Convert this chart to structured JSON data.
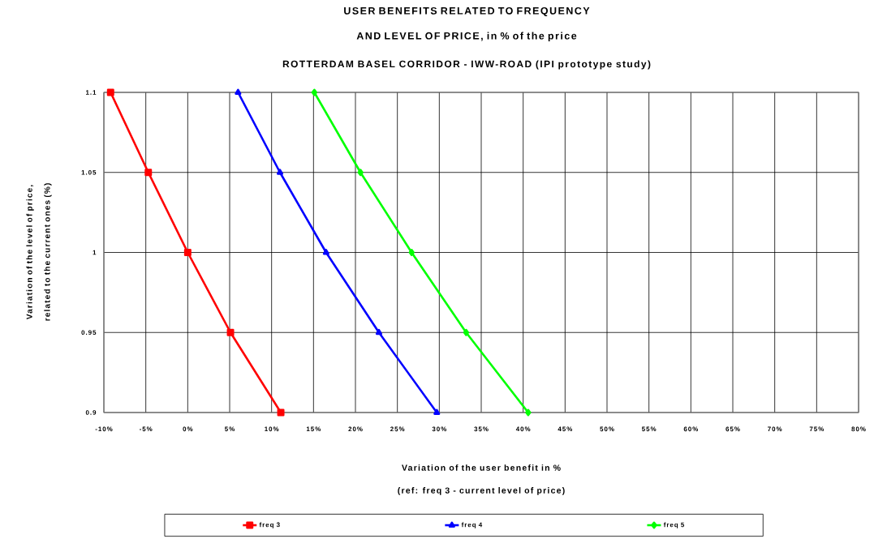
{
  "chart_data": {
    "type": "line",
    "title": "USER BENEFITS RELATED TO FREQUENCY AND LEVEL OF PRICE, in % of the price",
    "subtitle": "ROTTERDAM BASEL CORRIDOR - IWW-ROAD (IPI prototype study)",
    "xlabel": "Variation of the user benefit in %",
    "ylabel": "Variation of the level of price, related to the current ones (%)",
    "annotations": [
      "(ref: freq 3 - current level of price)"
    ],
    "series": [
      {
        "name": "freq 3",
        "color": "#ff0000",
        "marker": "square",
        "x": [
          -9.2,
          -4.7,
          0,
          5.1,
          11.1
        ],
        "values": [
          1.1,
          1.05,
          1,
          0.95,
          0.9
        ]
      },
      {
        "name": "freq 4",
        "color": "#0000ff",
        "marker": "triangle",
        "x": [
          6.0,
          11.0,
          16.5,
          22.8,
          29.7
        ],
        "values": [
          1.1,
          1.05,
          1,
          0.95,
          0.9
        ]
      },
      {
        "name": "freq 5",
        "color": "#00ff00",
        "marker": "diamond",
        "x": [
          15.1,
          20.6,
          26.7,
          33.2,
          40.6
        ],
        "values": [
          1.1,
          1.05,
          1,
          0.95,
          0.9
        ]
      }
    ],
    "xlim": [
      -10,
      80
    ],
    "ylim": [
      0.9,
      1.1
    ],
    "xticks": [
      {
        "value": -10,
        "label": "-10%"
      },
      {
        "value": -5,
        "label": "-5%"
      },
      {
        "value": 0,
        "label": "0%"
      },
      {
        "value": 5,
        "label": "5%"
      },
      {
        "value": 10,
        "label": "10%"
      },
      {
        "value": 15,
        "label": "15%"
      },
      {
        "value": 20,
        "label": "20%"
      },
      {
        "value": 25,
        "label": "25%"
      },
      {
        "value": 30,
        "label": "30%"
      },
      {
        "value": 35,
        "label": "35%"
      },
      {
        "value": 40,
        "label": "40%"
      },
      {
        "value": 45,
        "label": "45%"
      },
      {
        "value": 50,
        "label": "50%"
      },
      {
        "value": 55,
        "label": "55%"
      },
      {
        "value": 60,
        "label": "60%"
      },
      {
        "value": 65,
        "label": "65%"
      },
      {
        "value": 70,
        "label": "70%"
      },
      {
        "value": 75,
        "label": "75%"
      },
      {
        "value": 80,
        "label": "80%"
      }
    ],
    "yticks": [
      0.9,
      0.95,
      1,
      1.05,
      1.1
    ],
    "grid": true,
    "legend": "bottom",
    "line_style": "solid"
  }
}
